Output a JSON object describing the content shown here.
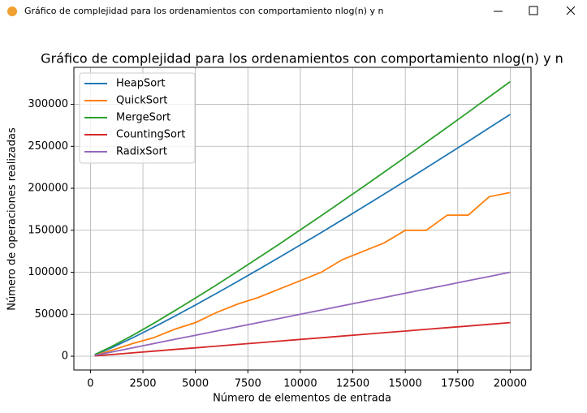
{
  "window_title": "Gráfico de complejidad para los ordenamientos con comportamiento nlog(n) y n",
  "chart_data": {
    "type": "line",
    "title": "Gráfico de complejidad para los ordenamientos con comportamiento nlog(n) y n",
    "x_label": "Número de elementos de entrada",
    "y_label": "Número de operaciones realizadas",
    "x": [
      200,
      1000,
      2000,
      3000,
      4000,
      5000,
      6000,
      7000,
      8000,
      9000,
      10000,
      11000,
      12000,
      13000,
      14000,
      15000,
      16000,
      17000,
      18000,
      19000,
      20000
    ],
    "series": [
      {
        "name": "HeapSort",
        "color": "#1f77b4",
        "values": [
          1700,
          10000,
          21800,
          34400,
          47500,
          61000,
          74800,
          88900,
          103200,
          117800,
          132500,
          147400,
          162500,
          177800,
          193200,
          208700,
          224300,
          240100,
          255900,
          272000,
          288000
        ]
      },
      {
        "name": "QuickSort",
        "color": "#ff7f0e",
        "values": [
          1000,
          7000,
          15000,
          22000,
          32000,
          40000,
          52000,
          62000,
          70000,
          80000,
          90000,
          100000,
          115000,
          125000,
          135000,
          150000,
          150000,
          168000,
          168000,
          190000,
          195000
        ]
      },
      {
        "name": "MergeSort",
        "color": "#2ca02c",
        "values": [
          1900,
          11400,
          24800,
          39000,
          53900,
          69200,
          84900,
          100900,
          117200,
          133700,
          150500,
          167400,
          184600,
          201900,
          219400,
          237000,
          254700,
          272600,
          290600,
          308800,
          327000
        ]
      },
      {
        "name": "CountingSort",
        "color": "#d62728",
        "values": [
          400,
          2000,
          4000,
          6000,
          8000,
          10000,
          12000,
          14000,
          16000,
          18000,
          20000,
          22000,
          24000,
          26000,
          28000,
          30000,
          32000,
          34000,
          36000,
          38000,
          40000
        ]
      },
      {
        "name": "RadixSort",
        "color": "#9467bd",
        "values": [
          1000,
          5000,
          10000,
          15000,
          20000,
          25000,
          30000,
          35000,
          40000,
          45000,
          50000,
          55000,
          60000,
          65000,
          70000,
          75000,
          80000,
          85000,
          90000,
          95000,
          100000
        ]
      }
    ],
    "xlim": [
      -790,
      20990
    ],
    "ylim": [
      -16400,
      344000
    ],
    "xticks": [
      0,
      2500,
      5000,
      7500,
      10000,
      12500,
      15000,
      17500,
      20000
    ],
    "yticks": [
      0,
      50000,
      100000,
      150000,
      200000,
      250000,
      300000
    ],
    "grid": true,
    "legend": "upper left"
  }
}
